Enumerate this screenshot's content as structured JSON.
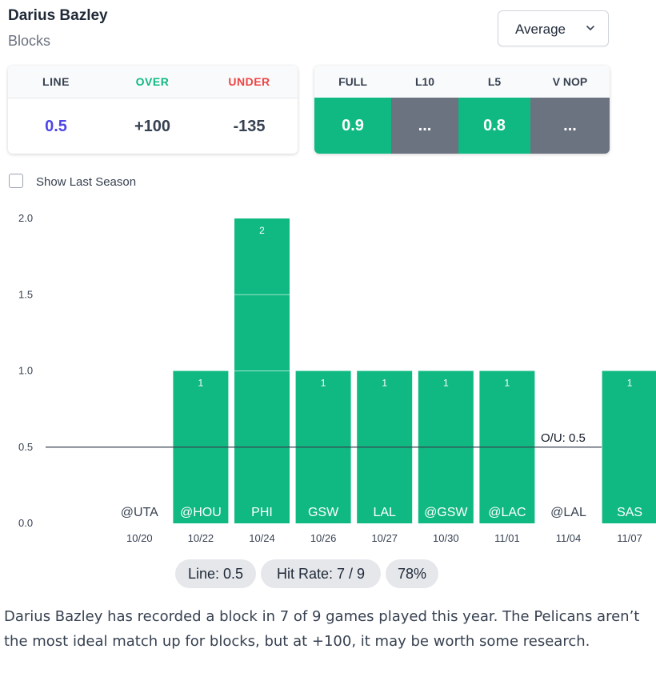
{
  "player": {
    "name": "Darius Bazley",
    "stat": "Blocks"
  },
  "dropdown": {
    "selected": "Average"
  },
  "odds": {
    "line_label": "LINE",
    "over_label": "OVER",
    "under_label": "UNDER",
    "line_value": "0.5",
    "over_value": "+100",
    "under_value": "-135"
  },
  "averages": [
    {
      "label": "FULL",
      "value": "0.9",
      "color": "#10b981"
    },
    {
      "label": "L10",
      "value": "...",
      "color": "#6b7280"
    },
    {
      "label": "L5",
      "value": "0.8",
      "color": "#10b981"
    },
    {
      "label": "V NOP",
      "value": "...",
      "color": "#6b7280"
    }
  ],
  "show_last_season": {
    "label": "Show Last Season",
    "checked": false
  },
  "colors": {
    "bar": "#10b981",
    "over": "#10b981",
    "under": "#ef4444",
    "line": "#4f46e5",
    "miss": "#6b7280"
  },
  "chart_data": {
    "type": "bar",
    "categories": [
      "@UTA",
      "@HOU",
      "PHI",
      "GSW",
      "LAL",
      "@GSW",
      "@LAC",
      "@LAL",
      "SAS"
    ],
    "dates": [
      "10/20",
      "10/22",
      "10/24",
      "10/26",
      "10/27",
      "10/30",
      "11/01",
      "11/04",
      "11/07"
    ],
    "values": [
      0,
      1,
      2,
      1,
      1,
      1,
      1,
      0,
      1
    ],
    "ylim": [
      0,
      2
    ],
    "yticks": [
      "0.0",
      "0.5",
      "1.0",
      "1.5",
      "2.0"
    ],
    "reference_line": {
      "value": 0.5,
      "label": "O/U: 0.5"
    },
    "grid": false
  },
  "pills": {
    "line": "Line: 0.5",
    "hit_rate": "Hit Rate: 7 / 9",
    "percent": "78%"
  },
  "summary": "Darius Bazley has recorded a block in 7 of 9 games played this year. The Pelicans aren’t the most ideal match up for blocks, but at +100, it may be worth some research."
}
